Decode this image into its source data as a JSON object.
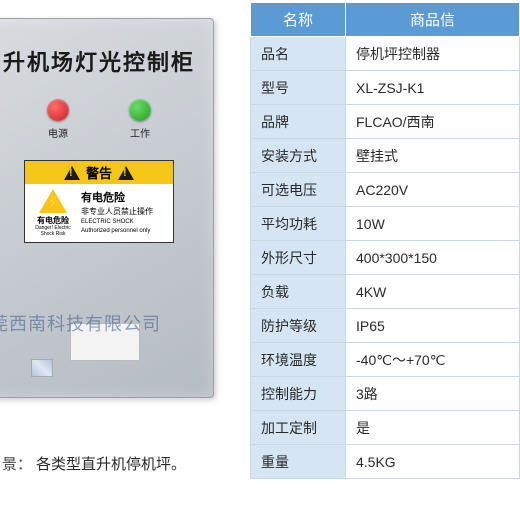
{
  "cabinet": {
    "title": "升机场灯光控制柜",
    "buttons": [
      {
        "label": "电源",
        "color": "#c41e1e"
      },
      {
        "label": "工作",
        "color": "#1e9e1e"
      }
    ],
    "warning": {
      "banner": "警告",
      "left_zh": "有电危险",
      "left_en": "Danger! Electric Shock Risk",
      "main_zh": "有电危险",
      "sub_zh": "非专业人员禁止操作",
      "en1": "ELECTRIC SHOCK",
      "en2": "Authorized personnel only"
    }
  },
  "watermark": "莞西南科技有限公司",
  "scene": {
    "label": "景：",
    "text": "各类型直升机停机坪。"
  },
  "table": {
    "header_bg": "#5b9bd5",
    "header_fg": "#ffffff",
    "key_bg": "#d6e5f4",
    "val_bg": "#ffffff",
    "border": "#c5d9ed",
    "headers": [
      "名称",
      "商品信"
    ],
    "rows": [
      {
        "key": "品名",
        "val": "停机坪控制器"
      },
      {
        "key": "型号",
        "val": "XL-ZSJ-K1"
      },
      {
        "key": "品牌",
        "val": "FLCAO/西南"
      },
      {
        "key": "安装方式",
        "val": "壁挂式"
      },
      {
        "key": "可选电压",
        "val": "AC220V"
      },
      {
        "key": "平均功耗",
        "val": "10W"
      },
      {
        "key": "外形尺寸",
        "val": "400*300*150"
      },
      {
        "key": "负载",
        "val": "4KW"
      },
      {
        "key": "防护等级",
        "val": "IP65"
      },
      {
        "key": "环境温度",
        "val": "-40℃～+70℃"
      },
      {
        "key": "控制能力",
        "val": "3路"
      },
      {
        "key": "加工定制",
        "val": "是"
      },
      {
        "key": "重量",
        "val": "4.5KG"
      }
    ]
  }
}
